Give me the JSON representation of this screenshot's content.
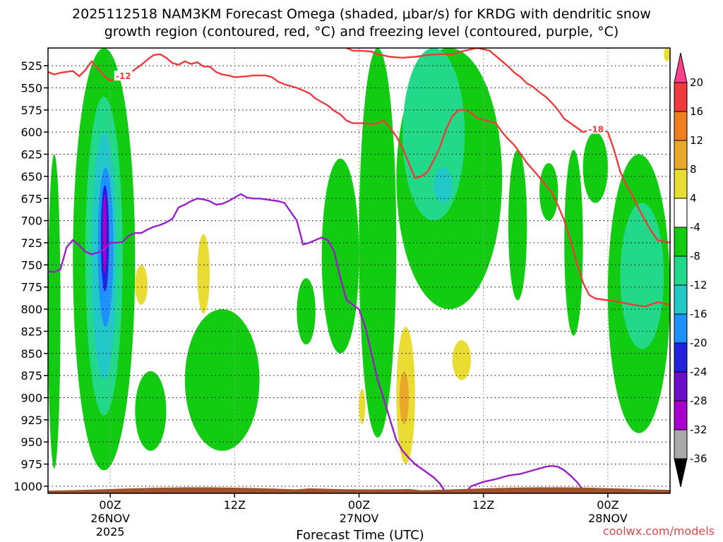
{
  "chart_data": {
    "type": "heatmap",
    "title_line1": "2025112518 NAM3KM Forecast Omega (shaded, μbar/s) for KRDG with dendritic snow",
    "title_line2": "growth region (contoured, red, °C) and freezing level (contoured, purple, °C)",
    "xlabel": "Forecast Time (UTC)",
    "ylabel_levels_hPa": [
      "525",
      "550",
      "575",
      "600",
      "625",
      "650",
      "675",
      "700",
      "725",
      "750",
      "775",
      "800",
      "825",
      "850",
      "875",
      "900",
      "925",
      "950",
      "975",
      "1000"
    ],
    "y_range_hPa": [
      505,
      1008
    ],
    "x_range_hours": [
      -10,
      90
    ],
    "x_ticks": [
      {
        "hour": 0,
        "line1": "00Z",
        "line2": "26NOV",
        "line3": "2025"
      },
      {
        "hour": 20,
        "line1": "12Z",
        "line2": "",
        "line3": ""
      },
      {
        "hour": 40,
        "line1": "00Z",
        "line2": "27NOV",
        "line3": ""
      },
      {
        "hour": 60,
        "line1": "12Z",
        "line2": "",
        "line3": ""
      },
      {
        "hour": 80,
        "line1": "00Z",
        "line2": "28NOV",
        "line3": ""
      }
    ],
    "colorbar": {
      "labels": [
        "20",
        "16",
        "12",
        "8",
        "4",
        "-4",
        "-8",
        "-12",
        "-16",
        "-20",
        "-24",
        "-28",
        "-32",
        "-36"
      ],
      "colors": [
        "#ff3f8d",
        "#ee3b3b",
        "#f07f22",
        "#e8a92a",
        "#e9dc33",
        "#ffffff",
        "#11cc11",
        "#22d98a",
        "#22c8c8",
        "#1e90ff",
        "#2222dd",
        "#6a0ec7",
        "#a800cc",
        "#a9a9a9",
        "#000000"
      ]
    },
    "series": [
      {
        "name": "-12C isotherm",
        "label": "-12",
        "color": "#ee3b3b",
        "points": [
          [
            -10,
            532
          ],
          [
            -9,
            535
          ],
          [
            -8,
            533
          ],
          [
            -6,
            531
          ],
          [
            -5,
            537
          ],
          [
            -4,
            530
          ],
          [
            -3,
            520
          ],
          [
            -2,
            528
          ],
          [
            -1,
            536
          ],
          [
            0,
            542
          ],
          [
            1,
            540
          ],
          [
            2,
            537
          ],
          [
            3,
            535
          ],
          [
            4,
            529
          ],
          [
            5,
            524
          ],
          [
            6,
            518
          ],
          [
            7,
            513
          ],
          [
            8,
            512
          ],
          [
            9,
            516
          ],
          [
            10,
            522
          ],
          [
            11,
            524
          ],
          [
            12,
            520
          ],
          [
            13,
            523
          ],
          [
            14,
            521
          ],
          [
            15,
            526
          ],
          [
            16,
            526
          ],
          [
            17,
            532
          ],
          [
            18,
            535
          ],
          [
            19,
            536
          ],
          [
            20,
            538
          ],
          [
            22,
            537
          ],
          [
            23,
            536
          ],
          [
            25,
            536
          ],
          [
            26,
            538
          ],
          [
            27,
            543
          ],
          [
            28,
            546
          ],
          [
            29,
            548
          ],
          [
            30,
            550
          ],
          [
            31,
            553
          ],
          [
            32,
            556
          ],
          [
            33,
            562
          ],
          [
            34,
            566
          ],
          [
            35,
            570
          ],
          [
            36,
            576
          ],
          [
            37,
            580
          ],
          [
            38,
            587
          ],
          [
            39,
            590
          ],
          [
            41,
            590
          ],
          [
            42,
            591
          ],
          [
            43,
            590
          ],
          [
            44,
            587
          ],
          [
            45,
            595
          ],
          [
            46,
            605
          ],
          [
            47,
            618
          ],
          [
            48,
            635
          ],
          [
            49,
            652
          ],
          [
            50,
            650
          ],
          [
            51,
            645
          ],
          [
            52,
            632
          ],
          [
            53,
            617
          ],
          [
            54,
            597
          ],
          [
            55,
            582
          ],
          [
            56,
            575
          ],
          [
            57,
            575
          ],
          [
            58,
            578
          ],
          [
            59,
            584
          ],
          [
            60,
            586
          ],
          [
            62,
            590
          ],
          [
            63,
            600
          ],
          [
            64,
            608
          ],
          [
            65,
            615
          ],
          [
            66,
            625
          ],
          [
            67,
            635
          ],
          [
            68,
            643
          ],
          [
            69,
            651
          ],
          [
            70,
            660
          ],
          [
            71,
            668
          ],
          [
            72,
            683
          ],
          [
            73,
            700
          ],
          [
            74,
            722
          ],
          [
            75,
            748
          ],
          [
            76,
            770
          ],
          [
            77,
            784
          ],
          [
            78,
            788
          ],
          [
            80,
            790
          ],
          [
            82,
            792
          ],
          [
            84,
            795
          ],
          [
            86,
            797
          ],
          [
            88,
            792
          ],
          [
            90,
            795
          ]
        ]
      },
      {
        "name": "-18C isotherm",
        "label": "-18",
        "color": "#ee3b3b",
        "points": [
          [
            37,
            495
          ],
          [
            38,
            505
          ],
          [
            39,
            508
          ],
          [
            40,
            508
          ],
          [
            42,
            509
          ],
          [
            43,
            512
          ],
          [
            45,
            515
          ],
          [
            47,
            516
          ],
          [
            49,
            515
          ],
          [
            51,
            513
          ],
          [
            53,
            512
          ],
          [
            55,
            512
          ],
          [
            57,
            508
          ],
          [
            59,
            505
          ],
          [
            61,
            508
          ],
          [
            62,
            514
          ],
          [
            63,
            520
          ],
          [
            64,
            526
          ],
          [
            65,
            533
          ],
          [
            66,
            538
          ],
          [
            67,
            545
          ],
          [
            68,
            549
          ],
          [
            69,
            555
          ],
          [
            70,
            560
          ],
          [
            71,
            567
          ],
          [
            72,
            575
          ],
          [
            73,
            585
          ],
          [
            74,
            590
          ],
          [
            75,
            595
          ],
          [
            76,
            600
          ],
          [
            77,
            598
          ],
          [
            78,
            597
          ],
          [
            79,
            597
          ],
          [
            80,
            600
          ],
          [
            81,
            620
          ],
          [
            82,
            645
          ],
          [
            83,
            660
          ],
          [
            84,
            672
          ],
          [
            85,
            687
          ],
          [
            86,
            700
          ],
          [
            87,
            712
          ],
          [
            88,
            722
          ],
          [
            90,
            725
          ]
        ]
      },
      {
        "name": "freezing level",
        "label": "",
        "color": "#9a1ec8",
        "points": [
          [
            -10,
            757
          ],
          [
            -9,
            758
          ],
          [
            -8,
            755
          ],
          [
            -7,
            730
          ],
          [
            -6,
            722
          ],
          [
            -5,
            728
          ],
          [
            -4,
            735
          ],
          [
            -3,
            738
          ],
          [
            -2,
            736
          ],
          [
            -1,
            733
          ],
          [
            0,
            725
          ],
          [
            1,
            725
          ],
          [
            2,
            724
          ],
          [
            3,
            717
          ],
          [
            4,
            714
          ],
          [
            5,
            714
          ],
          [
            6,
            710
          ],
          [
            7,
            707
          ],
          [
            8,
            705
          ],
          [
            9,
            702
          ],
          [
            10,
            698
          ],
          [
            11,
            685
          ],
          [
            12,
            682
          ],
          [
            13,
            678
          ],
          [
            14,
            675
          ],
          [
            15,
            676
          ],
          [
            16,
            678
          ],
          [
            17,
            682
          ],
          [
            18,
            681
          ],
          [
            19,
            678
          ],
          [
            20,
            674
          ],
          [
            21,
            670
          ],
          [
            22,
            674
          ],
          [
            23,
            675
          ],
          [
            24,
            675
          ],
          [
            25,
            676
          ],
          [
            26,
            677
          ],
          [
            27,
            678
          ],
          [
            28,
            680
          ],
          [
            29,
            690
          ],
          [
            30,
            700
          ],
          [
            31,
            727
          ],
          [
            32,
            725
          ],
          [
            33,
            722
          ],
          [
            34,
            719
          ],
          [
            35,
            722
          ],
          [
            36,
            735
          ],
          [
            37,
            765
          ],
          [
            38,
            790
          ],
          [
            39,
            795
          ],
          [
            40,
            800
          ],
          [
            41,
            820
          ],
          [
            42,
            850
          ],
          [
            43,
            880
          ],
          [
            44,
            902
          ],
          [
            45,
            925
          ],
          [
            46,
            948
          ],
          [
            47,
            960
          ],
          [
            48,
            968
          ],
          [
            49,
            975
          ],
          [
            50,
            980
          ],
          [
            51,
            985
          ],
          [
            52,
            990
          ],
          [
            53,
            997
          ],
          [
            54,
            1008
          ]
        ]
      },
      {
        "name": "freezing level 28NOV",
        "label": "",
        "color": "#9a1ec8",
        "points": [
          [
            57,
            1008
          ],
          [
            58,
            1000
          ],
          [
            60,
            995
          ],
          [
            62,
            992
          ],
          [
            64,
            988
          ],
          [
            66,
            986
          ],
          [
            68,
            982
          ],
          [
            70,
            978
          ],
          [
            71,
            977
          ],
          [
            72,
            978
          ],
          [
            73,
            982
          ],
          [
            74,
            988
          ],
          [
            75,
            995
          ],
          [
            76,
            1004
          ]
        ]
      }
    ],
    "omega_regions": [
      {
        "category": "-4",
        "hours_from": -10,
        "hours_to": -8,
        "p_top": 625,
        "p_bottom": 980
      },
      {
        "category": "-4",
        "hours_from": -6,
        "hours_to": 4,
        "p_top": 505,
        "p_bottom": 982
      },
      {
        "category": "-8",
        "hours_from": -4,
        "hours_to": 2,
        "p_top": 560,
        "p_bottom": 920
      },
      {
        "category": "-12",
        "hours_from": -3,
        "hours_to": 1,
        "p_top": 600,
        "p_bottom": 880
      },
      {
        "category": "-16",
        "hours_from": -2,
        "hours_to": 0.5,
        "p_top": 640,
        "p_bottom": 820
      },
      {
        "category": "-20",
        "hours_from": -1.5,
        "hours_to": -0.2,
        "p_top": 660,
        "p_bottom": 780
      },
      {
        "category": "-28",
        "hours_from": -1.2,
        "hours_to": -0.6,
        "p_top": 670,
        "p_bottom": 760
      },
      {
        "category": "-4",
        "hours_from": 4,
        "hours_to": 9,
        "p_top": 870,
        "p_bottom": 960
      },
      {
        "category": "-4",
        "hours_from": 12,
        "hours_to": 24,
        "p_top": 800,
        "p_bottom": 960
      },
      {
        "category": "-4",
        "hours_from": 30,
        "hours_to": 33,
        "p_top": 765,
        "p_bottom": 840
      },
      {
        "category": "-4",
        "hours_from": 34,
        "hours_to": 40,
        "p_top": 630,
        "p_bottom": 850
      },
      {
        "category": "-4",
        "hours_from": 40,
        "hours_to": 46,
        "p_top": 505,
        "p_bottom": 945
      },
      {
        "category": "-4",
        "hours_from": 46,
        "hours_to": 63,
        "p_top": 505,
        "p_bottom": 800
      },
      {
        "category": "-8",
        "hours_from": 47,
        "hours_to": 57,
        "p_top": 505,
        "p_bottom": 700
      },
      {
        "category": "-12",
        "hours_from": 52,
        "hours_to": 55,
        "p_top": 640,
        "p_bottom": 680
      },
      {
        "category": "-4",
        "hours_from": 64,
        "hours_to": 67,
        "p_top": 620,
        "p_bottom": 790
      },
      {
        "category": "-4",
        "hours_from": 69,
        "hours_to": 72,
        "p_top": 635,
        "p_bottom": 700
      },
      {
        "category": "-4",
        "hours_from": 73,
        "hours_to": 76,
        "p_top": 620,
        "p_bottom": 830
      },
      {
        "category": "-4",
        "hours_from": 76,
        "hours_to": 80,
        "p_top": 600,
        "p_bottom": 680
      },
      {
        "category": "-4",
        "hours_from": 80,
        "hours_to": 90,
        "p_top": 625,
        "p_bottom": 940
      },
      {
        "category": "-8",
        "hours_from": 82,
        "hours_to": 89,
        "p_top": 680,
        "p_bottom": 845
      },
      {
        "category": "4",
        "hours_from": 4,
        "hours_to": 6,
        "p_top": 750,
        "p_bottom": 795
      },
      {
        "category": "4",
        "hours_from": 14,
        "hours_to": 16,
        "p_top": 715,
        "p_bottom": 805
      },
      {
        "category": "4",
        "hours_from": 40,
        "hours_to": 41,
        "p_top": 890,
        "p_bottom": 930
      },
      {
        "category": "4",
        "hours_from": 46,
        "hours_to": 49,
        "p_top": 820,
        "p_bottom": 975
      },
      {
        "category": "8",
        "hours_from": 46.5,
        "hours_to": 48,
        "p_top": 870,
        "p_bottom": 930
      },
      {
        "category": "4",
        "hours_from": 55,
        "hours_to": 58,
        "p_top": 835,
        "p_bottom": 880
      },
      {
        "category": "4",
        "hours_from": 89,
        "hours_to": 90,
        "p_top": 505,
        "p_bottom": 520
      }
    ],
    "terrain_color": "#a0522d",
    "credit": "coolwx.com/models"
  }
}
